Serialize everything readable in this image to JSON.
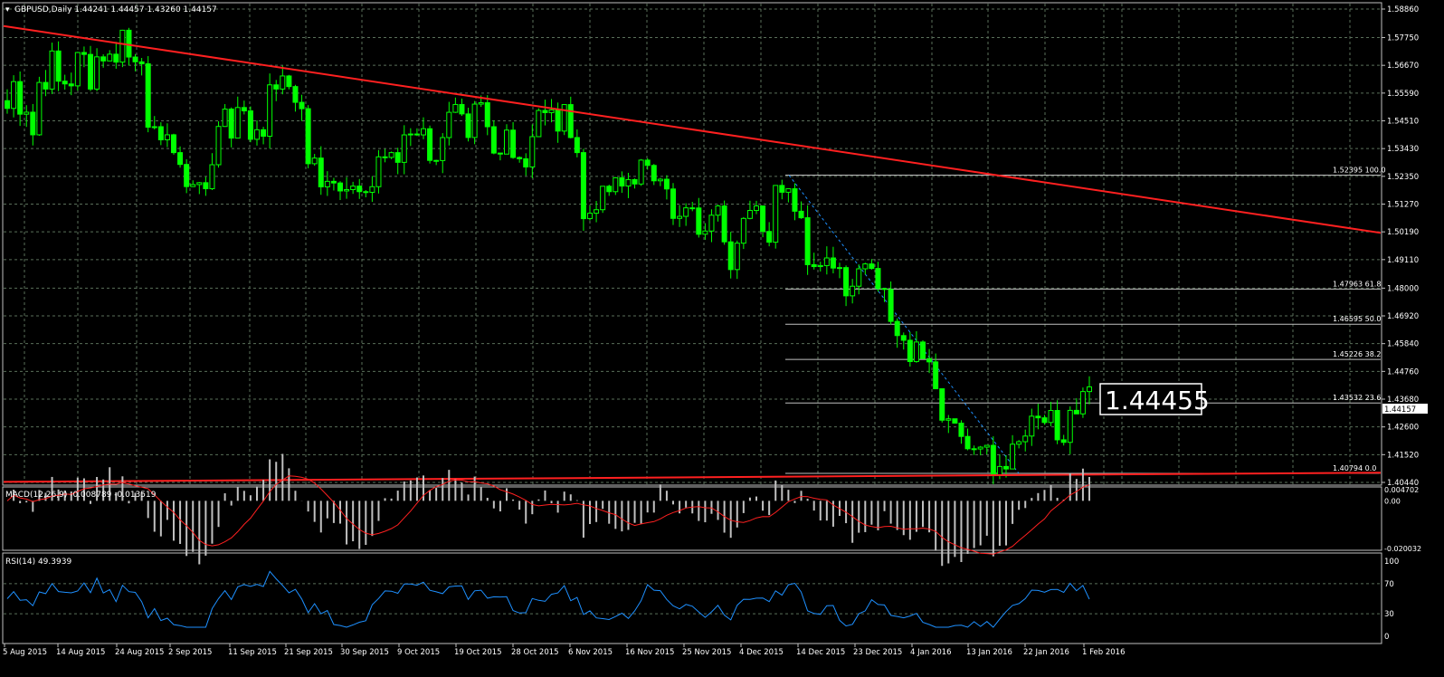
{
  "header": {
    "symbol_line": "GBPUSD,Daily  1.44241 1.44457 1.43260 1.44157",
    "macd_label": "MACD(12,26,9) -0.008789 -0.013519",
    "rsi_label": "RSI(14) 49.3939"
  },
  "price_callout": "1.44455",
  "current_price_tag": "1.44157",
  "price_axis_ticks": [
    "1.58860",
    "1.57750",
    "1.56670",
    "1.55590",
    "1.54510",
    "1.53430",
    "1.52350",
    "1.51270",
    "1.50190",
    "1.49110",
    "1.48000",
    "1.46920",
    "1.45840",
    "1.44760",
    "1.43680",
    "1.42600",
    "1.41520",
    "1.40440"
  ],
  "macd_axis_ticks": [
    "0.004702",
    "0.00",
    "-0.020032"
  ],
  "rsi_axis_ticks": [
    "100",
    "70",
    "30",
    "0"
  ],
  "date_labels": [
    "5 Aug 2015",
    "14 Aug 2015",
    "24 Aug 2015",
    "2 Sep 2015",
    "11 Sep 2015",
    "21 Sep 2015",
    "30 Sep 2015",
    "9 Oct 2015",
    "19 Oct 2015",
    "28 Oct 2015",
    "6 Nov 2015",
    "16 Nov 2015",
    "25 Nov 2015",
    "4 Dec 2015",
    "14 Dec 2015",
    "23 Dec 2015",
    "4 Jan 2016",
    "13 Jan 2016",
    "22 Jan 2016",
    "1 Feb 2016"
  ],
  "fibonacci": [
    {
      "price": 1.52395,
      "label": "1.52395 100.0"
    },
    {
      "price": 1.47963,
      "label": "1.47963 61.8"
    },
    {
      "price": 1.46595,
      "label": "1.46595 50.0"
    },
    {
      "price": 1.45226,
      "label": "1.45226 38.2"
    },
    {
      "price": 1.43532,
      "label": "1.43532 23.6"
    },
    {
      "price": 1.40794,
      "label": "1.40794 0.0"
    }
  ],
  "colors": {
    "background": "#000000",
    "grid": "#5a6f5a",
    "bull": "#00ff00",
    "bear": "#00ff00",
    "trendline": "#ff2020",
    "macd_hist": "#c0c0c0",
    "macd_signal": "#ff2020",
    "rsi_line": "#1e90ff",
    "fib": "#c0c0c0",
    "axis_text": "#ffffff"
  },
  "chart_data": {
    "type": "candlestick",
    "symbol": "GBPUSD",
    "timeframe": "Daily",
    "ylim": [
      1.4044,
      1.5886
    ],
    "last_close": 1.44157,
    "ohlc_approx": [
      1.55,
      1.56,
      1.55,
      1.55,
      1.54,
      1.56,
      1.56,
      1.57,
      1.56,
      1.56,
      1.56,
      1.57,
      1.57,
      1.56,
      1.57,
      1.57,
      1.57,
      1.57,
      1.58,
      1.57,
      1.57,
      1.57,
      1.54,
      1.54,
      1.54,
      1.54,
      1.53,
      1.53,
      1.52,
      1.52,
      1.52,
      1.52,
      1.53,
      1.54,
      1.55,
      1.54,
      1.55,
      1.55,
      1.54,
      1.54,
      1.54,
      1.56,
      1.56,
      1.56,
      1.56,
      1.55,
      1.55,
      1.53,
      1.53,
      1.52,
      1.52,
      1.52,
      1.52,
      1.52,
      1.52,
      1.52,
      1.52,
      1.52,
      1.53,
      1.53,
      1.53,
      1.53,
      1.54,
      1.54,
      1.54,
      1.54,
      1.53,
      1.53,
      1.54,
      1.55,
      1.55,
      1.55,
      1.54,
      1.55,
      1.55,
      1.54,
      1.53,
      1.53,
      1.54,
      1.53,
      1.53,
      1.53,
      1.54,
      1.55,
      1.55,
      1.55,
      1.54,
      1.55,
      1.54,
      1.53,
      1.51,
      1.51,
      1.51,
      1.52,
      1.52,
      1.52,
      1.52,
      1.52,
      1.52,
      1.53,
      1.53,
      1.52,
      1.52,
      1.52,
      1.51,
      1.51,
      1.51,
      1.51,
      1.5,
      1.5,
      1.51,
      1.51,
      1.5,
      1.49,
      1.5,
      1.51,
      1.51,
      1.51,
      1.5,
      1.5,
      1.52,
      1.52,
      1.52,
      1.51,
      1.51,
      1.49,
      1.49,
      1.49,
      1.49,
      1.49,
      1.49,
      1.48,
      1.48,
      1.49,
      1.49,
      1.49,
      1.48,
      1.48,
      1.47,
      1.46,
      1.46,
      1.45,
      1.46,
      1.45,
      1.45,
      1.44,
      1.43,
      1.43,
      1.43,
      1.42,
      1.42,
      1.42,
      1.42,
      1.42,
      1.41,
      1.41,
      1.41,
      1.42,
      1.42,
      1.42,
      1.43,
      1.43,
      1.43,
      1.43,
      1.42,
      1.42,
      1.43,
      1.43,
      1.44,
      1.44
    ],
    "trendlines": [
      {
        "from": [
          "5 Aug 2015",
          1.582
        ],
        "to": [
          "1 Feb 2016 +",
          1.5015
        ]
      },
      {
        "from": [
          "5 Aug 2015",
          1.4046
        ],
        "to": [
          "1 Feb 2016 +",
          1.4082
        ]
      }
    ],
    "indicators": [
      {
        "name": "MACD(12,26,9)",
        "main": -0.008789,
        "signal": -0.013519
      },
      {
        "name": "RSI(14)",
        "value": 49.3939,
        "levels": [
          30,
          70
        ]
      }
    ]
  }
}
